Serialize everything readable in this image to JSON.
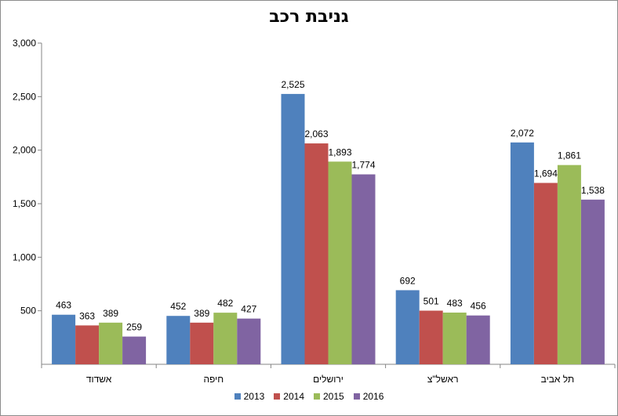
{
  "chart_data": {
    "type": "bar",
    "title": "גניבת רכב",
    "xlabel": "",
    "ylabel": "",
    "ylim": [
      0,
      3000
    ],
    "y_ticks": [
      500,
      1000,
      1500,
      2000,
      2500,
      3000
    ],
    "y_tick_labels": [
      "500",
      "1,000",
      "1,500",
      "2,000",
      "2,500",
      "3,000"
    ],
    "grid": false,
    "legend_position": "bottom",
    "categories": [
      "אשדוד",
      "חיפה",
      "ירושלים",
      "ראשל\"צ",
      "תל אביב"
    ],
    "series": [
      {
        "name": "2013",
        "color": "#4f81bd",
        "values": [
          463,
          452,
          2525,
          692,
          2072
        ],
        "labels": [
          "463",
          "452",
          "2,525",
          "692",
          "2,072"
        ]
      },
      {
        "name": "2014",
        "color": "#c0504d",
        "values": [
          363,
          389,
          2063,
          501,
          1694
        ],
        "labels": [
          "363",
          "389",
          "2,063",
          "501",
          "1,694"
        ]
      },
      {
        "name": "2015",
        "color": "#9bbb59",
        "values": [
          389,
          482,
          1893,
          483,
          1861
        ],
        "labels": [
          "389",
          "482",
          "1,893",
          "483",
          "1,861"
        ]
      },
      {
        "name": "2016",
        "color": "#8064a2",
        "values": [
          259,
          427,
          1774,
          456,
          1538
        ],
        "labels": [
          "259",
          "427",
          "1,774",
          "456",
          "1,538"
        ]
      }
    ]
  }
}
